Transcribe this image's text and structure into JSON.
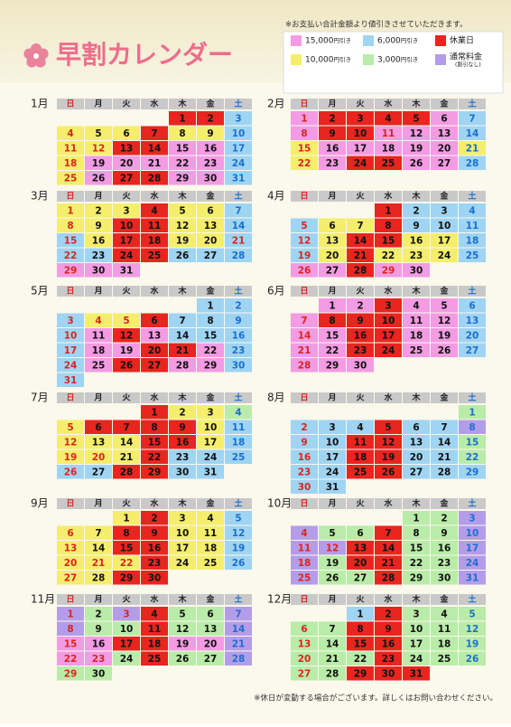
{
  "title": "早割カレンダー",
  "note": "※お支払い合計金額より値引きさせていただきます。",
  "footer": "※休日が変動する場合がございます。詳しくはお問い合わせください。",
  "legend": [
    {
      "code": "P",
      "color": "#f39be3",
      "label": "15,000",
      "unit": "円引き"
    },
    {
      "code": "B",
      "color": "#9fd4f2",
      "label": "6,000",
      "unit": "円引き"
    },
    {
      "code": "R",
      "color": "#e8251f",
      "label": "休業日"
    },
    {
      "code": "Y",
      "color": "#f4ee6c",
      "label": "10,000",
      "unit": "円引き"
    },
    {
      "code": "G",
      "color": "#b9eca8",
      "label": "3,000",
      "unit": "円引き"
    },
    {
      "code": "V",
      "color": "#b49de8",
      "label": "通常料金",
      "sub": "(割引なし)"
    }
  ],
  "weekdays": [
    "日",
    "月",
    "火",
    "水",
    "木",
    "金",
    "土"
  ],
  "months": [
    {
      "label": "1月",
      "weeks": [
        [
          null,
          null,
          null,
          null,
          1,
          2,
          3
        ],
        [
          4,
          5,
          6,
          7,
          8,
          9,
          10
        ],
        [
          11,
          12,
          13,
          14,
          15,
          16,
          17
        ],
        [
          18,
          19,
          20,
          21,
          22,
          23,
          24
        ],
        [
          25,
          26,
          27,
          28,
          29,
          30,
          31
        ]
      ],
      "status": [
        "....RRB",
        "YYYRYYB",
        "YYRRPPB",
        "YPPPPPB",
        "YPRRPPB"
      ],
      "holidays": [
        12
      ]
    },
    {
      "label": "2月",
      "weeks": [
        [
          1,
          2,
          3,
          4,
          5,
          6,
          7
        ],
        [
          8,
          9,
          10,
          11,
          12,
          13,
          14
        ],
        [
          15,
          16,
          17,
          18,
          19,
          20,
          21
        ],
        [
          22,
          23,
          24,
          25,
          26,
          27,
          28
        ]
      ],
      "status": [
        "PRRRRPB",
        "PRRPPPB",
        "YPPPPPY",
        "YPRRPPB"
      ],
      "holidays": [
        11
      ]
    },
    {
      "label": "3月",
      "weeks": [
        [
          1,
          2,
          3,
          4,
          5,
          6,
          7
        ],
        [
          8,
          9,
          10,
          11,
          12,
          13,
          14
        ],
        [
          15,
          16,
          17,
          18,
          19,
          20,
          21
        ],
        [
          22,
          23,
          24,
          25,
          26,
          27,
          28
        ],
        [
          29,
          30,
          31,
          null,
          null,
          null,
          null
        ]
      ],
      "status": [
        "YYYRYYB",
        "YYRRYYB",
        "BYRRYYB",
        "BBRRBBB",
        "PPP...."
      ],
      "holidays": [
        21
      ]
    },
    {
      "label": "4月",
      "weeks": [
        [
          null,
          null,
          null,
          1,
          2,
          3,
          4
        ],
        [
          5,
          6,
          7,
          8,
          9,
          10,
          11
        ],
        [
          12,
          13,
          14,
          15,
          16,
          17,
          18
        ],
        [
          19,
          20,
          21,
          22,
          23,
          24,
          25
        ],
        [
          26,
          27,
          28,
          29,
          30,
          null,
          null
        ]
      ],
      "status": [
        "...RBBB",
        "BYYRBBB",
        "BYRRYYB",
        "BYRYYYB",
        "PPRPP.."
      ],
      "holidays": [
        29
      ]
    },
    {
      "label": "5月",
      "weeks": [
        [
          null,
          null,
          null,
          null,
          null,
          1,
          2
        ],
        [
          3,
          4,
          5,
          6,
          7,
          8,
          9
        ],
        [
          10,
          11,
          12,
          13,
          14,
          15,
          16
        ],
        [
          17,
          18,
          19,
          20,
          21,
          22,
          23
        ],
        [
          24,
          25,
          26,
          27,
          28,
          29,
          30
        ],
        [
          31,
          null,
          null,
          null,
          null,
          null,
          null
        ]
      ],
      "status": [
        ".....BB",
        "BYYRBBB",
        "BPRPBBB",
        "BPPRRPB",
        "BPRRPPB",
        "B......"
      ],
      "holidays": [
        3,
        4,
        5,
        6
      ]
    },
    {
      "label": "6月",
      "weeks": [
        [
          null,
          1,
          2,
          3,
          4,
          5,
          6
        ],
        [
          7,
          8,
          9,
          10,
          11,
          12,
          13
        ],
        [
          14,
          15,
          16,
          17,
          18,
          19,
          20
        ],
        [
          21,
          22,
          23,
          24,
          25,
          26,
          27
        ],
        [
          28,
          29,
          30,
          null,
          null,
          null,
          null
        ]
      ],
      "status": [
        ".PPRPPB",
        "PRRRPPB",
        "PPRRPPB",
        "PPRRPPB",
        "PPP...."
      ],
      "holidays": []
    },
    {
      "label": "7月",
      "weeks": [
        [
          null,
          null,
          null,
          1,
          2,
          3,
          4
        ],
        [
          5,
          6,
          7,
          8,
          9,
          10,
          11
        ],
        [
          12,
          13,
          14,
          15,
          16,
          17,
          18
        ],
        [
          19,
          20,
          21,
          22,
          23,
          24,
          25
        ],
        [
          26,
          27,
          28,
          29,
          30,
          31,
          null
        ]
      ],
      "status": [
        "...RYYG",
        "YRRRRYB",
        "YYYRRYB",
        "YYYRBBB",
        "BBRRBB."
      ],
      "holidays": [
        20
      ]
    },
    {
      "label": "8月",
      "weeks": [
        [
          null,
          null,
          null,
          null,
          null,
          null,
          1
        ],
        [
          2,
          3,
          4,
          5,
          6,
          7,
          8
        ],
        [
          9,
          10,
          11,
          12,
          13,
          14,
          15
        ],
        [
          16,
          17,
          18,
          19,
          20,
          21,
          22
        ],
        [
          23,
          24,
          25,
          26,
          27,
          28,
          29
        ],
        [
          30,
          31,
          null,
          null,
          null,
          null,
          null
        ]
      ],
      "status": [
        "......G",
        "BBBRBBV",
        "BBRRBBG",
        "BBRRBBG",
        "BBRRBBB",
        "BB....."
      ],
      "holidays": []
    },
    {
      "label": "9月",
      "weeks": [
        [
          null,
          null,
          1,
          2,
          3,
          4,
          5
        ],
        [
          6,
          7,
          8,
          9,
          10,
          11,
          12
        ],
        [
          13,
          14,
          15,
          16,
          17,
          18,
          19
        ],
        [
          20,
          21,
          22,
          23,
          24,
          25,
          26
        ],
        [
          27,
          28,
          29,
          30,
          null,
          null,
          null
        ]
      ],
      "status": [
        "..YRYYB",
        "YYRRYYB",
        "YYRRYYB",
        "YYYRYYB",
        "YYRR..."
      ],
      "holidays": [
        21,
        22,
        23
      ]
    },
    {
      "label": "10月",
      "weeks": [
        [
          null,
          null,
          null,
          null,
          1,
          2,
          3
        ],
        [
          4,
          5,
          6,
          7,
          8,
          9,
          10
        ],
        [
          11,
          12,
          13,
          14,
          15,
          16,
          17
        ],
        [
          18,
          19,
          20,
          21,
          22,
          23,
          24
        ],
        [
          25,
          26,
          27,
          28,
          29,
          30,
          31
        ]
      ],
      "status": [
        "....GGV",
        "VGGRGGV",
        "VVRRGGV",
        "VGRRGGV",
        "VGGRGGV"
      ],
      "holidays": [
        12
      ]
    },
    {
      "label": "11月",
      "weeks": [
        [
          1,
          2,
          3,
          4,
          5,
          6,
          7
        ],
        [
          8,
          9,
          10,
          11,
          12,
          13,
          14
        ],
        [
          15,
          16,
          17,
          18,
          19,
          20,
          21
        ],
        [
          22,
          23,
          24,
          25,
          26,
          27,
          28
        ],
        [
          29,
          30,
          null,
          null,
          null,
          null,
          null
        ]
      ],
      "status": [
        "VGVRGGV",
        "VGGRGGV",
        "PPRRPPV",
        "PPGRGGV",
        "GG....."
      ],
      "holidays": [
        3,
        23
      ]
    },
    {
      "label": "12月",
      "weeks": [
        [
          null,
          null,
          1,
          2,
          3,
          4,
          5
        ],
        [
          6,
          7,
          8,
          9,
          10,
          11,
          12
        ],
        [
          13,
          14,
          15,
          16,
          17,
          18,
          19
        ],
        [
          20,
          21,
          22,
          23,
          24,
          25,
          26
        ],
        [
          27,
          28,
          29,
          30,
          31,
          null,
          null
        ]
      ],
      "status": [
        "..BRGGG",
        "GGRRGGG",
        "GGRRGGG",
        "GGGRGGG",
        "GGRRR.."
      ],
      "holidays": [
        23
      ]
    }
  ]
}
